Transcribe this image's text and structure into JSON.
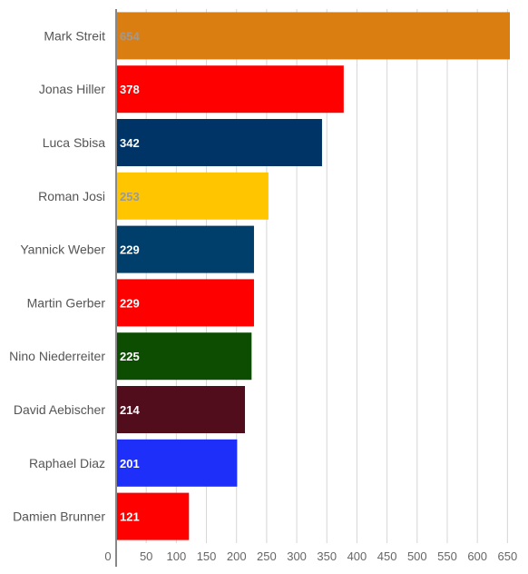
{
  "chart_data": {
    "type": "bar",
    "orientation": "horizontal",
    "categories": [
      "Mark Streit",
      "Jonas Hiller",
      "Luca Sbisa",
      "Roman Josi",
      "Yannick Weber",
      "Martin Gerber",
      "Nino Niederreiter",
      "David Aebischer",
      "Raphael Diaz",
      "Damien Brunner"
    ],
    "values": [
      654,
      378,
      342,
      253,
      229,
      229,
      225,
      214,
      201,
      121
    ],
    "colors": [
      "#db7e12",
      "#ff0000",
      "#003366",
      "#ffc600",
      "#003e6b",
      "#ff0000",
      "#0d4d02",
      "#520d1c",
      "#1f2ffa",
      "#ff0000"
    ],
    "label_colors": [
      "#9a9a9a",
      "#ffffff",
      "#ffffff",
      "#9a9a9a",
      "#ffffff",
      "#ffffff",
      "#ffffff",
      "#ffffff",
      "#ffffff",
      "#ffffff"
    ],
    "xlim": [
      0,
      654
    ],
    "xticks": [
      0,
      50,
      100,
      150,
      200,
      250,
      300,
      350,
      400,
      450,
      500,
      550,
      600,
      650
    ],
    "grid": true,
    "legend": "none"
  }
}
